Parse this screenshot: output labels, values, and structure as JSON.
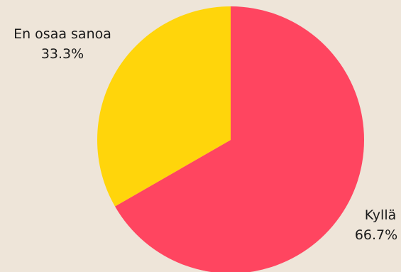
{
  "chart_data": {
    "type": "pie",
    "background": "#EEE5D9",
    "start_angle_deg": 0,
    "direction": "clockwise",
    "slices": [
      {
        "label": "Kyllä",
        "value": 66.7,
        "display": "66.7%",
        "color": "#FF4560"
      },
      {
        "label": "En osaa sanoa",
        "value": 33.3,
        "display": "33.3%",
        "color": "#FFD50B"
      }
    ]
  }
}
